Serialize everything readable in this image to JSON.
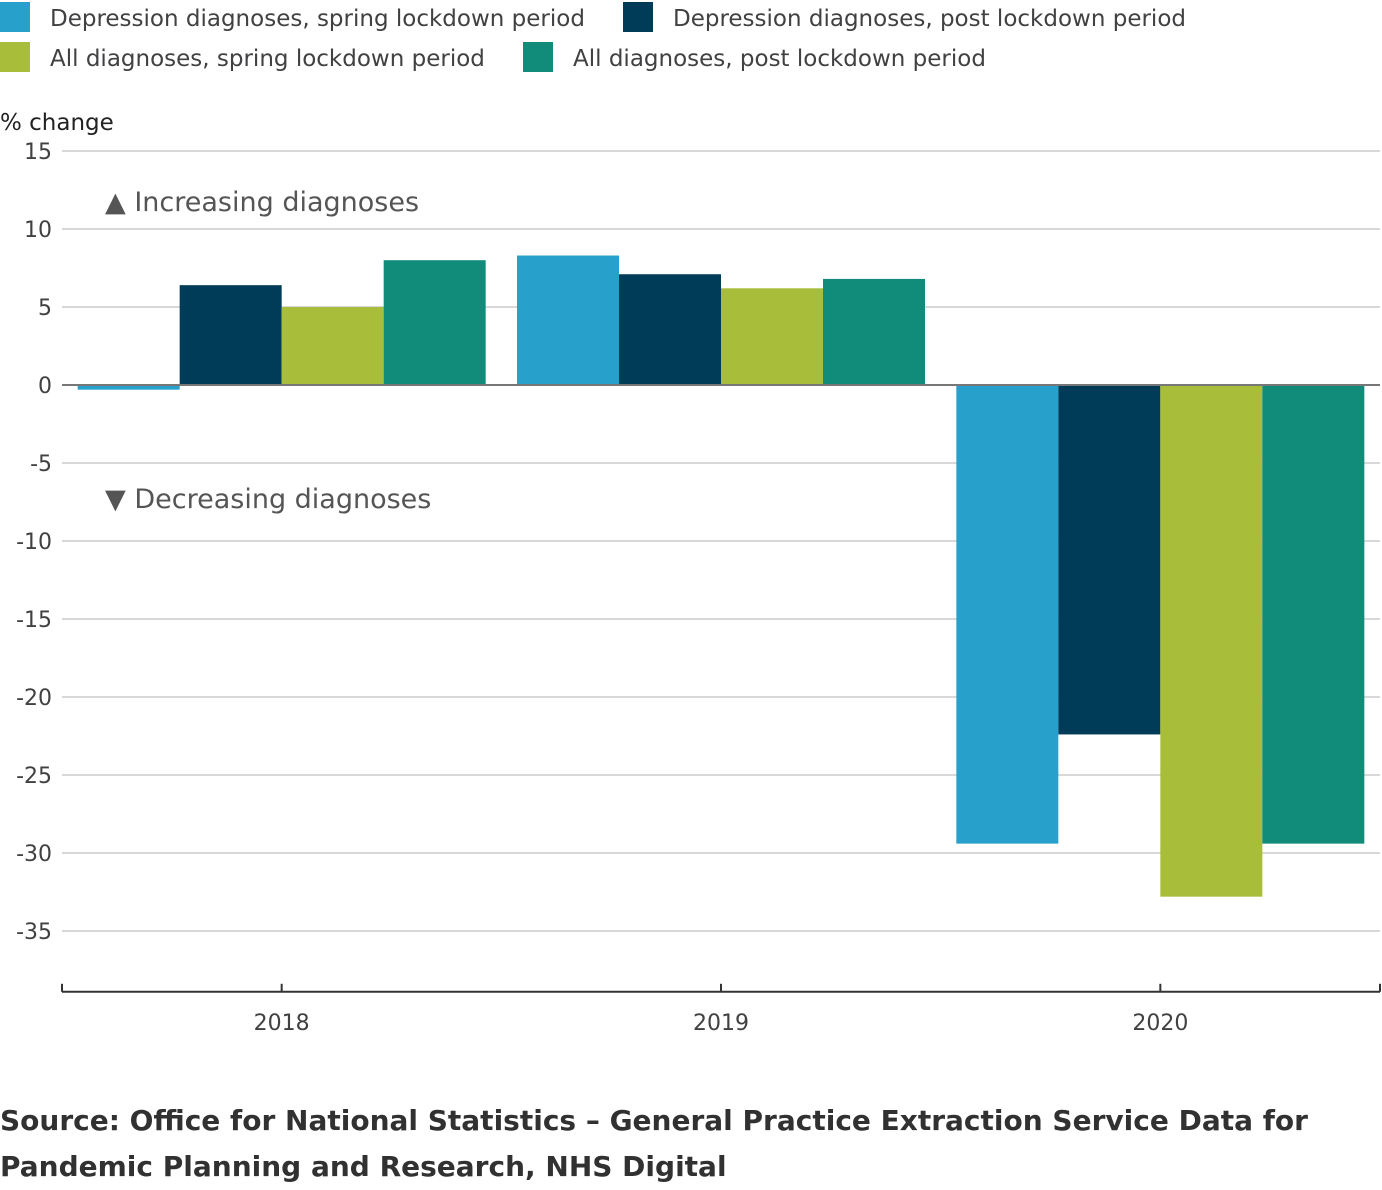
{
  "chart_data": {
    "type": "bar",
    "title": "",
    "xlabel": "",
    "ylabel": "% change",
    "ylim": [
      -38,
      15
    ],
    "yticks": [
      15,
      10,
      5,
      0,
      -5,
      -10,
      -15,
      -20,
      -25,
      -30,
      -35
    ],
    "grid": true,
    "legend_position": "top",
    "categories": [
      "2018",
      "2019",
      "2020"
    ],
    "series": [
      {
        "name": "Depression diagnoses, spring lockdown period",
        "color": "#27a0cc",
        "values": [
          -0.3,
          8.3,
          -29.4
        ]
      },
      {
        "name": "Depression diagnoses, post lockdown period",
        "color": "#003c57",
        "values": [
          6.4,
          7.1,
          -22.4
        ]
      },
      {
        "name": "All diagnoses, spring lockdown period",
        "color": "#a8bd3a",
        "values": [
          5.0,
          6.2,
          -32.8
        ]
      },
      {
        "name": "All diagnoses, post lockdown period",
        "color": "#118c7b",
        "values": [
          8.0,
          6.8,
          -29.4
        ]
      }
    ],
    "annotations": [
      "▲ Increasing diagnoses",
      "▼ Decreasing diagnoses"
    ]
  },
  "source": "Source: Office for National Statistics – General Practice Extraction Service Data for Pandemic Planning and Research, NHS Digital"
}
